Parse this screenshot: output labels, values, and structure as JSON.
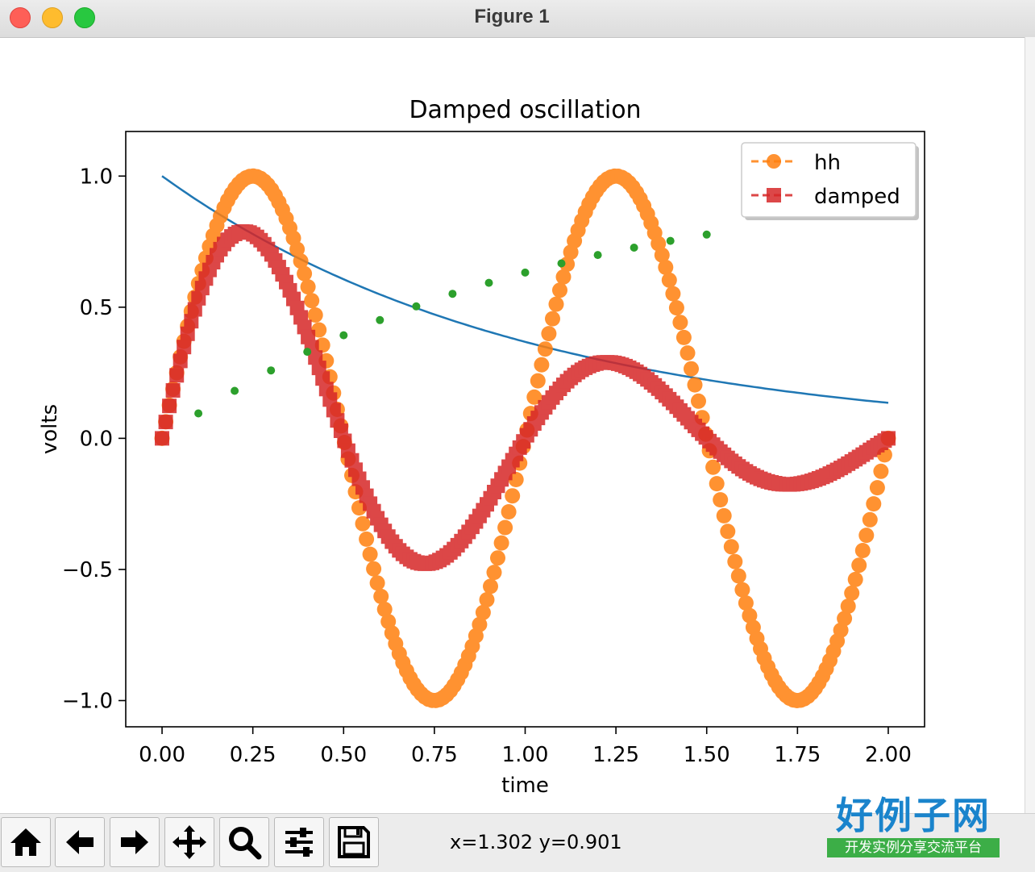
{
  "window": {
    "title": "Figure 1"
  },
  "colors": {
    "hh": "#ff7f0e",
    "damped": "#d62728",
    "envelope": "#1f77b4",
    "dots": "#2ca02c"
  },
  "chart_data": {
    "type": "line",
    "title": "Damped oscillation",
    "xlabel": "time",
    "ylabel": "volts",
    "xlim": [
      -0.1,
      2.1
    ],
    "ylim": [
      -1.1,
      1.17
    ],
    "xticks": [
      "0.00",
      "0.25",
      "0.50",
      "0.75",
      "1.00",
      "1.25",
      "1.50",
      "1.75",
      "2.00"
    ],
    "yticks": [
      "−1.0",
      "−0.5",
      "0.0",
      "0.5",
      "1.0"
    ],
    "grid": false,
    "legend_position": "top-right",
    "series": [
      {
        "name": "hh",
        "style": "dashed line with circle markers",
        "function": "cos(2*pi*(t-0.25))",
        "x_range": [
          0,
          2
        ],
        "points": 200
      },
      {
        "name": "damped",
        "style": "dashed line with square markers",
        "function": "exp(-t)*sin(2*pi*t)",
        "x_range": [
          0,
          2
        ],
        "points": 200
      },
      {
        "style": "solid line",
        "function": "exp(-t)",
        "x_range": [
          0,
          2
        ]
      },
      {
        "style": "dots",
        "x": [
          0.1,
          0.2,
          0.3,
          0.4,
          0.5,
          0.6,
          0.7,
          0.8,
          0.9,
          1.0,
          1.1,
          1.2,
          1.3,
          1.4,
          1.5
        ],
        "y": [
          0.095,
          0.181,
          0.259,
          0.33,
          0.393,
          0.451,
          0.503,
          0.551,
          0.593,
          0.632,
          0.667,
          0.699,
          0.727,
          0.753,
          0.777
        ]
      }
    ]
  },
  "toolbar": {
    "buttons": [
      "home-icon",
      "back-arrow-icon",
      "forward-arrow-icon",
      "pan-icon",
      "zoom-icon",
      "configure-subplots-icon",
      "save-icon"
    ],
    "coordinates": "x=1.302 y=0.901"
  },
  "logo": {
    "main": "好例子网",
    "sub": "开发实例分享交流平台"
  }
}
